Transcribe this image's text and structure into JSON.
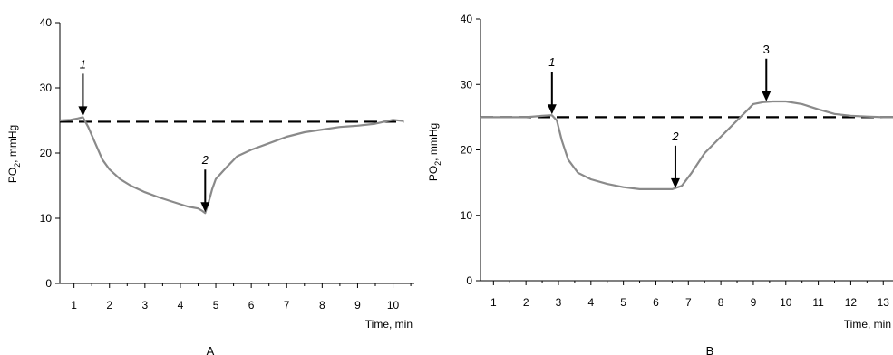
{
  "chart_data": [
    {
      "type": "line",
      "panel_label": "A",
      "xlabel": "Time, min",
      "ylabel_main": "PO",
      "ylabel_sub": "2",
      "ylabel_rest": ", mmHg",
      "xlim": [
        0.6,
        10.6
      ],
      "ylim": [
        0,
        40
      ],
      "x_ticks": [
        1,
        2,
        3,
        4,
        5,
        6,
        7,
        8,
        9,
        10
      ],
      "y_ticks": [
        0,
        10,
        20,
        30,
        40
      ],
      "baseline": {
        "y": 24.8,
        "x_start": 0.6,
        "x_end": 10.3,
        "style": "dashed"
      },
      "series": [
        {
          "x": [
            0.6,
            0.9,
            1.1,
            1.25,
            1.4,
            1.6,
            1.8,
            2.0,
            2.3,
            2.6,
            3.0,
            3.4,
            3.8,
            4.2,
            4.5,
            4.6,
            4.7,
            4.8,
            4.9,
            5.0,
            5.3,
            5.6,
            6.0,
            6.5,
            7.0,
            7.5,
            8.0,
            8.5,
            9.0,
            9.5,
            10.0,
            10.3
          ],
          "y": [
            25.0,
            25.1,
            25.3,
            25.5,
            24.0,
            21.5,
            19.0,
            17.5,
            16.0,
            15.0,
            14.0,
            13.2,
            12.5,
            11.8,
            11.5,
            11.2,
            10.8,
            12.5,
            14.5,
            16.0,
            17.8,
            19.5,
            20.5,
            21.5,
            22.5,
            23.2,
            23.6,
            24.0,
            24.2,
            24.5,
            25.1,
            24.9
          ]
        }
      ],
      "markers": [
        {
          "label": "1",
          "x": 1.25,
          "y": 25.5
        },
        {
          "label": "2",
          "x": 4.7,
          "y": 10.8
        }
      ]
    },
    {
      "type": "line",
      "panel_label": "B",
      "xlabel": "Time, min",
      "ylabel_main": "PO",
      "ylabel_sub": "2",
      "ylabel_rest": ", mmHg",
      "xlim": [
        0.6,
        13.3
      ],
      "ylim": [
        0,
        40
      ],
      "x_ticks": [
        1,
        2,
        3,
        4,
        5,
        6,
        7,
        8,
        9,
        10,
        11,
        12,
        13
      ],
      "y_ticks": [
        0,
        10,
        20,
        30,
        40
      ],
      "baseline": {
        "y": 25.0,
        "x_start": 0.6,
        "x_end": 13.3,
        "style": "dashed"
      },
      "series": [
        {
          "x": [
            0.6,
            1.0,
            1.5,
            2.0,
            2.5,
            2.8,
            2.95,
            3.1,
            3.3,
            3.6,
            4.0,
            4.5,
            5.0,
            5.5,
            6.0,
            6.5,
            6.8,
            7.1,
            7.5,
            8.0,
            8.5,
            8.8,
            9.0,
            9.3,
            9.6,
            10.0,
            10.5,
            11.0,
            11.5,
            12.0,
            12.5,
            13.0,
            13.3
          ],
          "y": [
            25.0,
            25.0,
            25.0,
            25.0,
            25.2,
            25.3,
            24.5,
            21.5,
            18.5,
            16.5,
            15.5,
            14.8,
            14.3,
            14.0,
            14.0,
            14.0,
            14.5,
            16.5,
            19.5,
            22.0,
            24.5,
            26.0,
            27.0,
            27.3,
            27.4,
            27.4,
            27.0,
            26.2,
            25.5,
            25.2,
            25.1,
            25.0,
            25.0
          ]
        }
      ],
      "markers": [
        {
          "label": "1",
          "x": 2.8,
          "y": 25.3
        },
        {
          "label": "2",
          "x": 6.6,
          "y": 14.0
        },
        {
          "label": "3",
          "x": 9.4,
          "y": 27.3
        }
      ]
    }
  ]
}
